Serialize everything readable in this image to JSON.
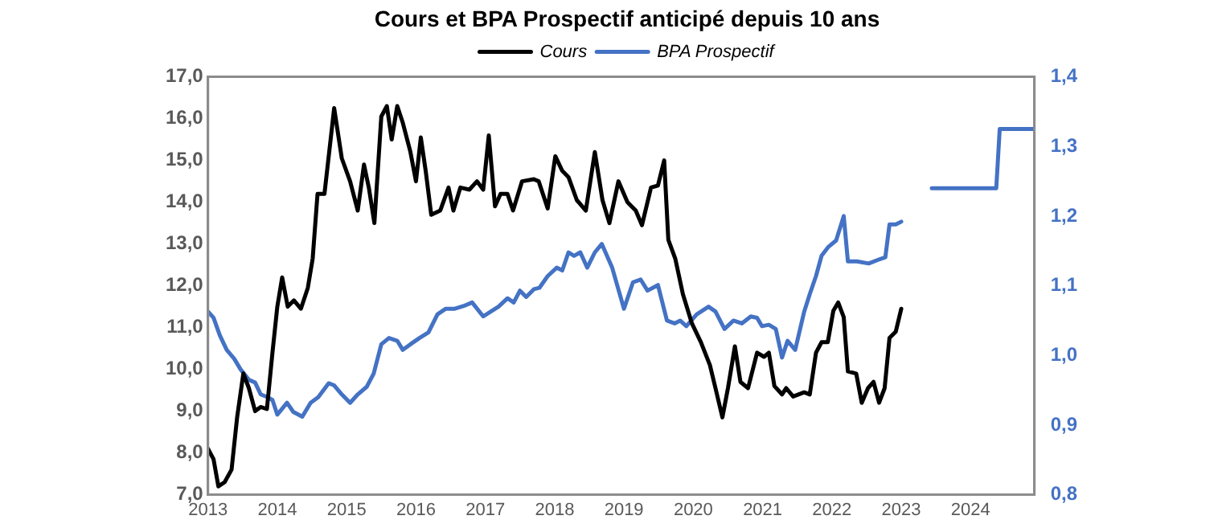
{
  "chart_data": {
    "type": "line",
    "title": "Cours et BPA Prospectif anticipé depuis 10 ans",
    "legend": "top",
    "grid": false,
    "marker": "none",
    "line_style": "solid",
    "xlim": [
      2013,
      2024.92
    ],
    "xticks": [
      2013,
      2014,
      2015,
      2016,
      2017,
      2018,
      2019,
      2020,
      2021,
      2022,
      2023,
      2024
    ],
    "ylim": [
      7,
      17
    ],
    "yticks": [
      {
        "value": 7,
        "label": "7,0"
      },
      {
        "value": 8,
        "label": "8,0"
      },
      {
        "value": 9,
        "label": "9,0"
      },
      {
        "value": 10,
        "label": "10,0"
      },
      {
        "value": 11,
        "label": "11,0"
      },
      {
        "value": 12,
        "label": "12,0"
      },
      {
        "value": 13,
        "label": "13,0"
      },
      {
        "value": 14,
        "label": "14,0"
      },
      {
        "value": 15,
        "label": "15,0"
      },
      {
        "value": 16,
        "label": "16,0"
      },
      {
        "value": 17,
        "label": "17,0"
      }
    ],
    "y2lim": [
      0.8,
      1.4
    ],
    "y2ticks": [
      {
        "value": 0.8,
        "label": "0,8"
      },
      {
        "value": 0.9,
        "label": "0,9"
      },
      {
        "value": 1.0,
        "label": "1,0"
      },
      {
        "value": 1.1,
        "label": "1,1"
      },
      {
        "value": 1.2,
        "label": "1,2"
      },
      {
        "value": 1.3,
        "label": "1,3"
      },
      {
        "value": 1.4,
        "label": "1,4"
      }
    ],
    "series": [
      {
        "name": "Cours",
        "color": "#000000",
        "x": [
          2013.0,
          2013.08,
          2013.15,
          2013.24,
          2013.34,
          2013.42,
          2013.51,
          2013.59,
          2013.68,
          2013.76,
          2013.85,
          2013.93,
          2014.0,
          2014.07,
          2014.15,
          2014.24,
          2014.34,
          2014.44,
          2014.51,
          2014.58,
          2014.68,
          2014.82,
          2014.93,
          2015.05,
          2015.16,
          2015.25,
          2015.32,
          2015.4,
          2015.5,
          2015.58,
          2015.65,
          2015.73,
          2015.81,
          2015.92,
          2016.0,
          2016.07,
          2016.14,
          2016.22,
          2016.35,
          2016.47,
          2016.54,
          2016.64,
          2016.77,
          2016.88,
          2016.97,
          2017.05,
          2017.14,
          2017.22,
          2017.32,
          2017.4,
          2017.53,
          2017.7,
          2017.77,
          2017.9,
          2018.01,
          2018.11,
          2018.2,
          2018.32,
          2018.45,
          2018.58,
          2018.69,
          2018.79,
          2018.92,
          2019.05,
          2019.17,
          2019.26,
          2019.39,
          2019.49,
          2019.58,
          2019.64,
          2019.74,
          2019.85,
          2019.98,
          2020.11,
          2020.24,
          2020.32,
          2020.42,
          2020.5,
          2020.6,
          2020.68,
          2020.79,
          2020.92,
          2021.02,
          2021.09,
          2021.17,
          2021.28,
          2021.34,
          2021.44,
          2021.6,
          2021.68,
          2021.77,
          2021.85,
          2021.94,
          2022.02,
          2022.09,
          2022.17,
          2022.23,
          2022.35,
          2022.43,
          2022.52,
          2022.6,
          2022.68,
          2022.76,
          2022.83,
          2022.92,
          2023.0
        ],
        "values": [
          8.1,
          7.85,
          7.2,
          7.3,
          7.6,
          8.85,
          9.9,
          9.55,
          9.0,
          9.1,
          9.05,
          10.4,
          11.5,
          12.2,
          11.5,
          11.65,
          11.45,
          11.95,
          12.65,
          14.2,
          14.2,
          16.25,
          15.05,
          14.5,
          13.8,
          14.9,
          14.35,
          13.5,
          16.05,
          16.3,
          15.5,
          16.3,
          15.9,
          15.2,
          14.5,
          15.55,
          14.75,
          13.7,
          13.8,
          14.35,
          13.8,
          14.35,
          14.3,
          14.5,
          14.3,
          15.6,
          13.9,
          14.2,
          14.2,
          13.8,
          14.5,
          14.55,
          14.5,
          13.85,
          15.1,
          14.75,
          14.6,
          14.05,
          13.8,
          15.2,
          14.05,
          13.5,
          14.5,
          14.0,
          13.8,
          13.45,
          14.35,
          14.4,
          15.0,
          13.1,
          12.65,
          11.8,
          11.1,
          10.65,
          10.1,
          9.55,
          8.85,
          9.55,
          10.55,
          9.7,
          9.55,
          10.4,
          10.3,
          10.4,
          9.6,
          9.4,
          9.55,
          9.35,
          9.45,
          9.4,
          10.4,
          10.65,
          10.65,
          11.4,
          11.6,
          11.25,
          9.95,
          9.9,
          9.2,
          9.55,
          9.7,
          9.2,
          9.55,
          10.75,
          10.9,
          11.45
        ]
      },
      {
        "name": "BPA Prospectif",
        "color": "#4472c4",
        "axis": "y2",
        "x": [
          2013.0,
          2013.08,
          2013.17,
          2013.27,
          2013.38,
          2013.47,
          2013.59,
          2013.68,
          2013.76,
          2013.86,
          2013.93,
          2014.0,
          2014.14,
          2014.23,
          2014.36,
          2014.48,
          2014.59,
          2014.74,
          2014.82,
          2014.93,
          2015.05,
          2015.16,
          2015.29,
          2015.39,
          2015.5,
          2015.61,
          2015.73,
          2015.81,
          2015.92,
          2016.05,
          2016.18,
          2016.31,
          2016.43,
          2016.56,
          2016.69,
          2016.81,
          2016.97,
          2017.08,
          2017.19,
          2017.32,
          2017.41,
          2017.5,
          2017.59,
          2017.7,
          2017.78,
          2017.9,
          2018.03,
          2018.11,
          2018.2,
          2018.28,
          2018.37,
          2018.47,
          2018.58,
          2018.68,
          2018.83,
          2019.0,
          2019.13,
          2019.24,
          2019.34,
          2019.49,
          2019.62,
          2019.73,
          2019.81,
          2019.9,
          2020.05,
          2020.22,
          2020.32,
          2020.45,
          2020.58,
          2020.7,
          2020.83,
          2020.92,
          2020.99,
          2021.09,
          2021.19,
          2021.28,
          2021.36,
          2021.47,
          2021.6,
          2021.68,
          2021.77,
          2021.85,
          2021.95,
          2022.06,
          2022.17,
          2022.23,
          2022.36,
          2022.53,
          2022.66,
          2022.77,
          2022.83,
          2022.92,
          2023.0,
          2023.2,
          2023.44,
          2024.37,
          2024.42,
          2024.92
        ],
        "values": [
          1.063,
          1.054,
          1.029,
          1.008,
          0.995,
          0.98,
          0.965,
          0.961,
          0.944,
          0.94,
          0.936,
          0.915,
          0.932,
          0.919,
          0.912,
          0.932,
          0.94,
          0.96,
          0.957,
          0.944,
          0.932,
          0.944,
          0.955,
          0.974,
          1.016,
          1.025,
          1.021,
          1.008,
          1.016,
          1.025,
          1.033,
          1.059,
          1.067,
          1.067,
          1.071,
          1.076,
          1.056,
          1.063,
          1.07,
          1.082,
          1.076,
          1.093,
          1.084,
          1.095,
          1.097,
          1.114,
          1.126,
          1.122,
          1.148,
          1.143,
          1.148,
          1.126,
          1.148,
          1.16,
          1.126,
          1.067,
          1.105,
          1.109,
          1.093,
          1.101,
          1.05,
          1.046,
          1.05,
          1.042,
          1.059,
          1.07,
          1.063,
          1.038,
          1.05,
          1.046,
          1.056,
          1.054,
          1.042,
          1.044,
          1.038,
          0.997,
          1.021,
          1.008,
          1.063,
          1.088,
          1.114,
          1.143,
          1.156,
          1.165,
          1.2,
          1.135,
          1.135,
          1.132,
          1.137,
          1.141,
          1.188,
          1.188,
          1.192,
          null,
          1.24,
          1.24,
          1.325,
          1.325
        ]
      }
    ]
  }
}
